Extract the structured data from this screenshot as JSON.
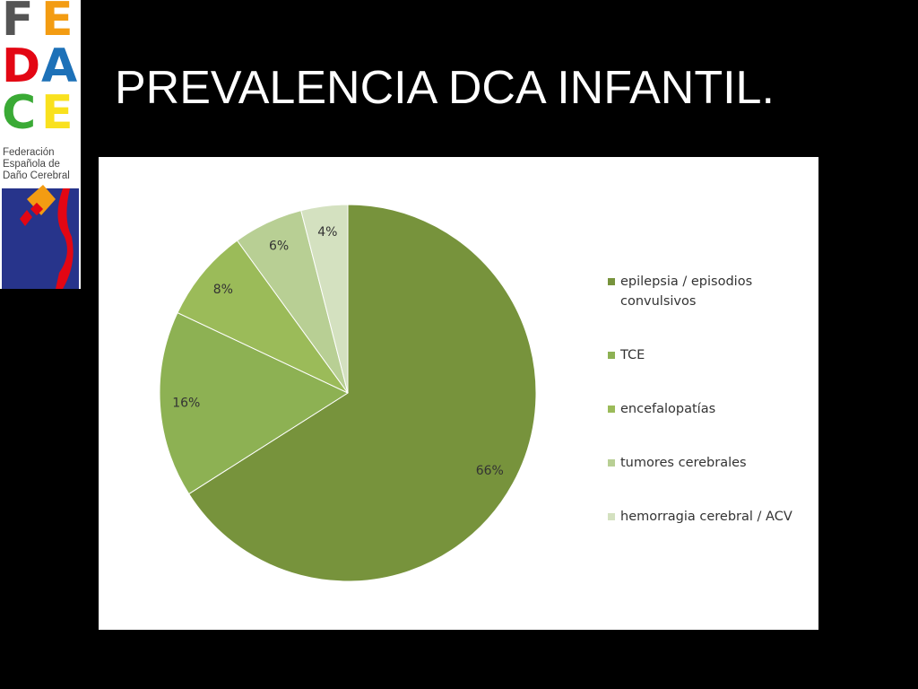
{
  "title": "PREVALENCIA DCA INFANTIL.",
  "logo": {
    "letters": [
      "F",
      "E",
      "D",
      "A",
      "C",
      "E"
    ],
    "caption": [
      "Federación",
      "Española de",
      "Daño Cerebral"
    ]
  },
  "chart_data": {
    "type": "pie",
    "categories": [
      "epilepsia / episodios convulsivos",
      "TCE",
      "encefalopatías",
      "tumores cerebrales",
      "hemorragia cerebral / ACV"
    ],
    "values": [
      66,
      16,
      8,
      6,
      4
    ],
    "value_labels": [
      "66%",
      "16%",
      "8%",
      "6%",
      "4%"
    ],
    "colors": [
      "#77933c",
      "#8db153",
      "#9bbb59",
      "#b8cf94",
      "#d4e1c0"
    ],
    "legend": "right"
  }
}
